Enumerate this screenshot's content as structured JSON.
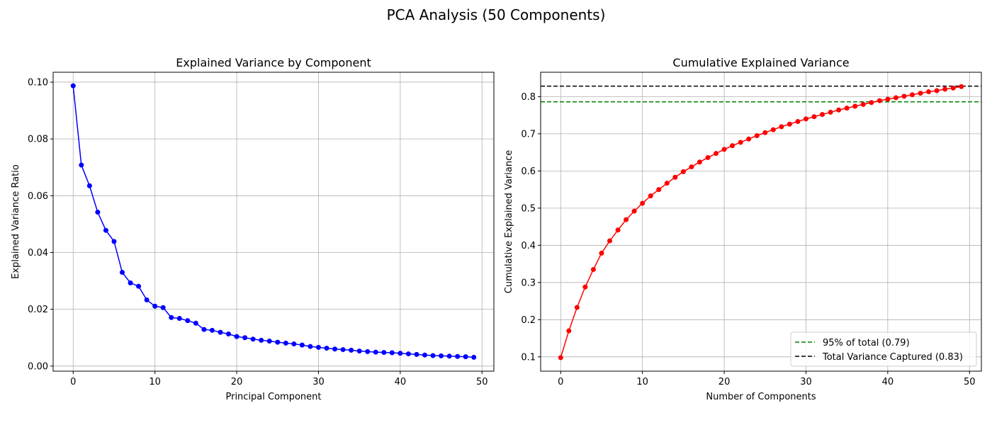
{
  "figure": {
    "title": "PCA Analysis (50 Components)"
  },
  "chart_data": [
    {
      "type": "line",
      "title": "Explained Variance by Component",
      "xlabel": "Principal Component",
      "ylabel": "Explained Variance Ratio",
      "xlim": [
        -2.45,
        51.45
      ],
      "ylim": [
        -0.00179,
        0.10348
      ],
      "xticks": [
        0,
        10,
        20,
        30,
        40,
        50
      ],
      "yticks": [
        0.0,
        0.02,
        0.04,
        0.06,
        0.08,
        0.1
      ],
      "xtick_labels": [
        "0",
        "10",
        "20",
        "30",
        "40",
        "50"
      ],
      "ytick_labels": [
        "0.00",
        "0.02",
        "0.04",
        "0.06",
        "0.08",
        "0.10"
      ],
      "grid": true,
      "series": [
        {
          "color": "#0000ff",
          "marker": "circle",
          "x": [
            0,
            1,
            2,
            3,
            4,
            5,
            6,
            7,
            8,
            9,
            10,
            11,
            12,
            13,
            14,
            15,
            16,
            17,
            18,
            19,
            20,
            21,
            22,
            23,
            24,
            25,
            26,
            27,
            28,
            29,
            30,
            31,
            32,
            33,
            34,
            35,
            36,
            37,
            38,
            39,
            40,
            41,
            42,
            43,
            44,
            45,
            46,
            47,
            48,
            49
          ],
          "values": [
            0.0987,
            0.0708,
            0.0635,
            0.0542,
            0.0478,
            0.0439,
            0.033,
            0.0293,
            0.0281,
            0.0233,
            0.0211,
            0.0206,
            0.0171,
            0.0168,
            0.016,
            0.0151,
            0.0129,
            0.0126,
            0.0119,
            0.0113,
            0.0104,
            0.01,
            0.0095,
            0.0091,
            0.0088,
            0.0084,
            0.0081,
            0.0078,
            0.0074,
            0.0069,
            0.0066,
            0.0063,
            0.006,
            0.0058,
            0.0056,
            0.0053,
            0.0051,
            0.0049,
            0.0048,
            0.0047,
            0.0045,
            0.0043,
            0.0041,
            0.0039,
            0.0037,
            0.0036,
            0.0035,
            0.0034,
            0.0033,
            0.0031
          ]
        }
      ]
    },
    {
      "type": "line",
      "title": "Cumulative Explained Variance",
      "xlabel": "Number of Components",
      "ylabel": "Cumulative Explained Variance",
      "xlim": [
        -2.45,
        51.45
      ],
      "ylim": [
        0.0615,
        0.8655
      ],
      "xticks": [
        0,
        10,
        20,
        30,
        40,
        50
      ],
      "yticks": [
        0.1,
        0.2,
        0.3,
        0.4,
        0.5,
        0.6,
        0.7,
        0.8
      ],
      "xtick_labels": [
        "0",
        "10",
        "20",
        "30",
        "40",
        "50"
      ],
      "ytick_labels": [
        "0.1",
        "0.2",
        "0.3",
        "0.4",
        "0.5",
        "0.6",
        "0.7",
        "0.8"
      ],
      "grid": true,
      "legend_position": "bottom-right",
      "series": [
        {
          "color": "#ff0000",
          "marker": "circle",
          "x": [
            0,
            1,
            2,
            3,
            4,
            5,
            6,
            7,
            8,
            9,
            10,
            11,
            12,
            13,
            14,
            15,
            16,
            17,
            18,
            19,
            20,
            21,
            22,
            23,
            24,
            25,
            26,
            27,
            28,
            29,
            30,
            31,
            32,
            33,
            34,
            35,
            36,
            37,
            38,
            39,
            40,
            41,
            42,
            43,
            44,
            45,
            46,
            47,
            48,
            49
          ],
          "values": [
            0.098,
            0.17,
            0.233,
            0.288,
            0.335,
            0.379,
            0.412,
            0.441,
            0.469,
            0.492,
            0.513,
            0.533,
            0.55,
            0.567,
            0.583,
            0.598,
            0.611,
            0.624,
            0.636,
            0.647,
            0.658,
            0.668,
            0.677,
            0.686,
            0.695,
            0.703,
            0.711,
            0.719,
            0.726,
            0.733,
            0.74,
            0.746,
            0.752,
            0.758,
            0.764,
            0.769,
            0.774,
            0.779,
            0.784,
            0.789,
            0.793,
            0.797,
            0.801,
            0.805,
            0.809,
            0.813,
            0.816,
            0.82,
            0.823,
            0.827
          ]
        }
      ],
      "reference_lines": [
        {
          "label": "95% of total (0.79)",
          "y": 0.786,
          "color": "#008000",
          "style": "dashed"
        },
        {
          "label": "Total Variance Captured (0.83)",
          "y": 0.828,
          "color": "#000000",
          "style": "dashed"
        }
      ]
    }
  ]
}
